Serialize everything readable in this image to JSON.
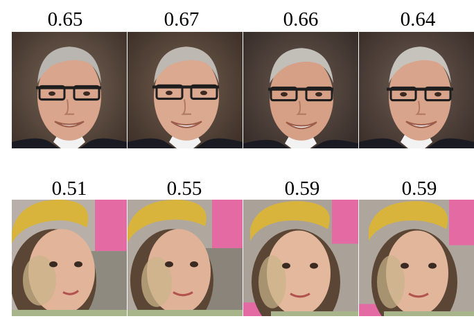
{
  "rows": [
    {
      "subject": "man",
      "images": [
        {
          "score": "0.65"
        },
        {
          "score": "0.67"
        },
        {
          "score": "0.66"
        },
        {
          "score": "0.64"
        }
      ]
    },
    {
      "subject": "girl",
      "images": [
        {
          "score": "0.51"
        },
        {
          "score": "0.55"
        },
        {
          "score": "0.59"
        },
        {
          "score": "0.59"
        }
      ]
    }
  ],
  "colors": {
    "man_background": "#5a4a40",
    "man_skin": "#d9a58c",
    "man_hair": "#b9b5b0",
    "man_glasses": "#1e1e1e",
    "man_suit": "#1a1a22",
    "girl_headband": "#d8b43c",
    "girl_skin": "#e2b59a",
    "girl_hair": "#5b4636",
    "girl_background_pink": "#e46aa4",
    "girl_background_gray": "#b8b0a8"
  }
}
